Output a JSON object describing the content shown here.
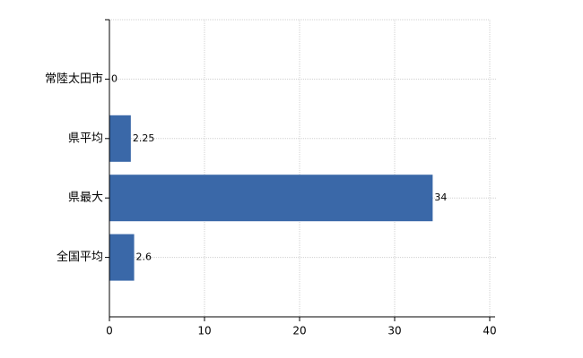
{
  "chart_data": {
    "type": "bar",
    "orientation": "horizontal",
    "categories": [
      "常陸太田市",
      "県平均",
      "県最大",
      "全国平均"
    ],
    "values": [
      0,
      2.25,
      34,
      2.6
    ],
    "color": "#3a68a8",
    "xlim": [
      0,
      40
    ],
    "xticks": [
      0,
      10,
      20,
      30,
      40
    ],
    "grid": true
  }
}
